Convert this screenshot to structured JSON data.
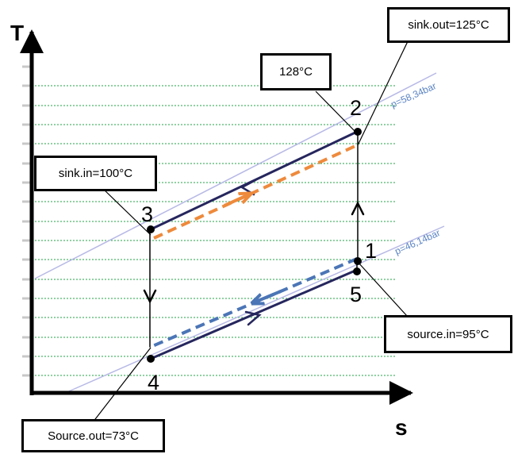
{
  "axes": {
    "y_label": "T",
    "x_label": "s"
  },
  "isobars": [
    {
      "label": "p=58,34bar"
    },
    {
      "label": "p=46,14bar"
    }
  ],
  "points": [
    {
      "label": "1"
    },
    {
      "label": "2"
    },
    {
      "label": "3"
    },
    {
      "label": "4"
    },
    {
      "label": "5"
    }
  ],
  "callouts": {
    "sink_out": "sink.out=125°C",
    "t_max": "128°C",
    "sink_in": "sink.in=100°C",
    "source_in": "source.in=95°C",
    "source_out": "Source.out=73°C"
  },
  "colors": {
    "cycle": "#26265e",
    "sink_stream": "#ee8a3c",
    "source_stream": "#4b75b6",
    "isobar": "#b7b9e6",
    "isobar_label": "#5b84c4",
    "grid": "#22a346",
    "tick": "#c8c8c8"
  }
}
